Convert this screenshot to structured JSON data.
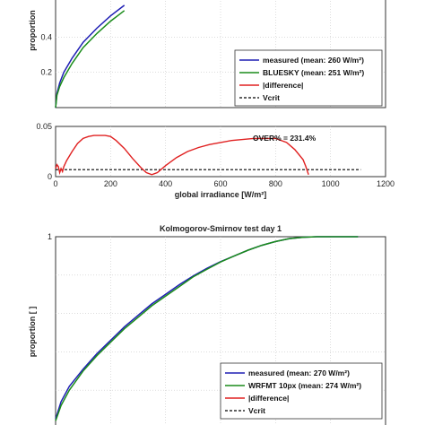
{
  "colors": {
    "measured": "#1f1fb4",
    "model": "#1a8c1a",
    "difference": "#e02020",
    "vcrit": "#000000",
    "grid": "#c8c8c8",
    "axis": "#333333"
  },
  "chart_data": [
    {
      "type": "line",
      "ylabel": "proportion",
      "yticks": [
        "0.2",
        "0.4"
      ],
      "ytick_values": [
        0.2,
        0.4
      ],
      "xlim": [
        0,
        1200
      ],
      "ylim": [
        0,
        0.62
      ],
      "series": [
        {
          "name": "measured (mean: 260 W/m²)",
          "key": "measured",
          "x": [
            0,
            5,
            15,
            30,
            60,
            100,
            150,
            200,
            250
          ],
          "y": [
            0,
            0.08,
            0.14,
            0.2,
            0.28,
            0.37,
            0.45,
            0.52,
            0.58
          ]
        },
        {
          "name": "BLUESKY (mean: 251 W/m²)",
          "key": "model",
          "x": [
            0,
            5,
            15,
            30,
            60,
            100,
            150,
            200,
            250
          ],
          "y": [
            0,
            0.07,
            0.12,
            0.17,
            0.25,
            0.34,
            0.42,
            0.49,
            0.55
          ]
        }
      ],
      "legend": [
        {
          "label": "measured (mean: 260 W/m²)",
          "key": "measured",
          "style": "solid"
        },
        {
          "label": "BLUESKY (mean: 251 W/m²)",
          "key": "model",
          "style": "solid"
        },
        {
          "label": "|difference|",
          "key": "difference",
          "style": "solid"
        },
        {
          "label": "Vcrit",
          "key": "vcrit",
          "style": "dashed"
        }
      ]
    },
    {
      "type": "line",
      "xlabel": "global irradiance [W/m²]",
      "xticks": [
        "0",
        "200",
        "400",
        "600",
        "800",
        "1000",
        "1200"
      ],
      "xtick_values": [
        0,
        200,
        400,
        600,
        800,
        1000,
        1200
      ],
      "yticks": [
        "0",
        "0.05"
      ],
      "ytick_values": [
        0,
        0.05
      ],
      "xlim": [
        0,
        1200
      ],
      "ylim": [
        0,
        0.05
      ],
      "annotation": "OVER% = 231.4%",
      "difference": {
        "x": [
          0,
          5,
          10,
          15,
          20,
          25,
          30,
          40,
          60,
          80,
          100,
          120,
          140,
          160,
          180,
          200,
          220,
          250,
          280,
          310,
          330,
          350,
          370,
          400,
          440,
          480,
          520,
          560,
          600,
          640,
          680,
          720,
          760,
          800,
          840,
          870,
          900,
          910,
          920
        ],
        "y": [
          0.008,
          0.012,
          0.01,
          0.004,
          0.008,
          0.005,
          0.01,
          0.016,
          0.025,
          0.033,
          0.038,
          0.04,
          0.041,
          0.041,
          0.041,
          0.04,
          0.036,
          0.028,
          0.018,
          0.009,
          0.004,
          0.002,
          0.004,
          0.011,
          0.019,
          0.025,
          0.029,
          0.032,
          0.034,
          0.036,
          0.037,
          0.038,
          0.038,
          0.038,
          0.034,
          0.027,
          0.017,
          0.01,
          0.002
        ]
      },
      "vcrit": 0.007,
      "vcrit_range": [
        0,
        1110
      ]
    },
    {
      "type": "line",
      "title": "Kolmogorov-Smirnov test day 1",
      "ylabel": "proportion [ ]",
      "yticks": [
        "1"
      ],
      "ytick_values": [
        1
      ],
      "xlim": [
        0,
        1200
      ],
      "ylim": [
        0,
        1.0
      ],
      "series": [
        {
          "name": "measured (mean: 270 W/m²)",
          "key": "measured",
          "x": [
            0,
            20,
            50,
            100,
            150,
            200,
            250,
            300,
            350,
            400,
            450,
            500,
            550,
            600,
            650,
            700,
            750,
            800,
            850,
            900,
            950,
            1000,
            1050,
            1100
          ],
          "y": [
            0.05,
            0.14,
            0.22,
            0.31,
            0.39,
            0.46,
            0.53,
            0.59,
            0.65,
            0.7,
            0.75,
            0.795,
            0.835,
            0.87,
            0.9,
            0.93,
            0.955,
            0.975,
            0.99,
            0.997,
            1.0,
            1.0,
            1.0,
            1.0
          ]
        },
        {
          "name": "WRFMT 10px (mean: 274 W/m²)",
          "key": "model",
          "x": [
            0,
            20,
            50,
            100,
            150,
            200,
            250,
            300,
            350,
            400,
            450,
            500,
            550,
            600,
            650,
            700,
            750,
            800,
            850,
            900,
            950,
            1000,
            1050,
            1100
          ],
          "y": [
            0.04,
            0.12,
            0.2,
            0.3,
            0.38,
            0.45,
            0.52,
            0.58,
            0.64,
            0.69,
            0.74,
            0.79,
            0.83,
            0.868,
            0.9,
            0.93,
            0.955,
            0.975,
            0.99,
            0.997,
            1.0,
            1.0,
            1.0,
            1.0
          ]
        }
      ],
      "legend": [
        {
          "label": "measured (mean: 270 W/m²)",
          "key": "measured",
          "style": "solid"
        },
        {
          "label": "WRFMT 10px (mean: 274 W/m²)",
          "key": "model",
          "style": "solid"
        },
        {
          "label": "|difference|",
          "key": "difference",
          "style": "solid"
        },
        {
          "label": "Vcrit",
          "key": "vcrit",
          "style": "dashed"
        }
      ]
    }
  ]
}
